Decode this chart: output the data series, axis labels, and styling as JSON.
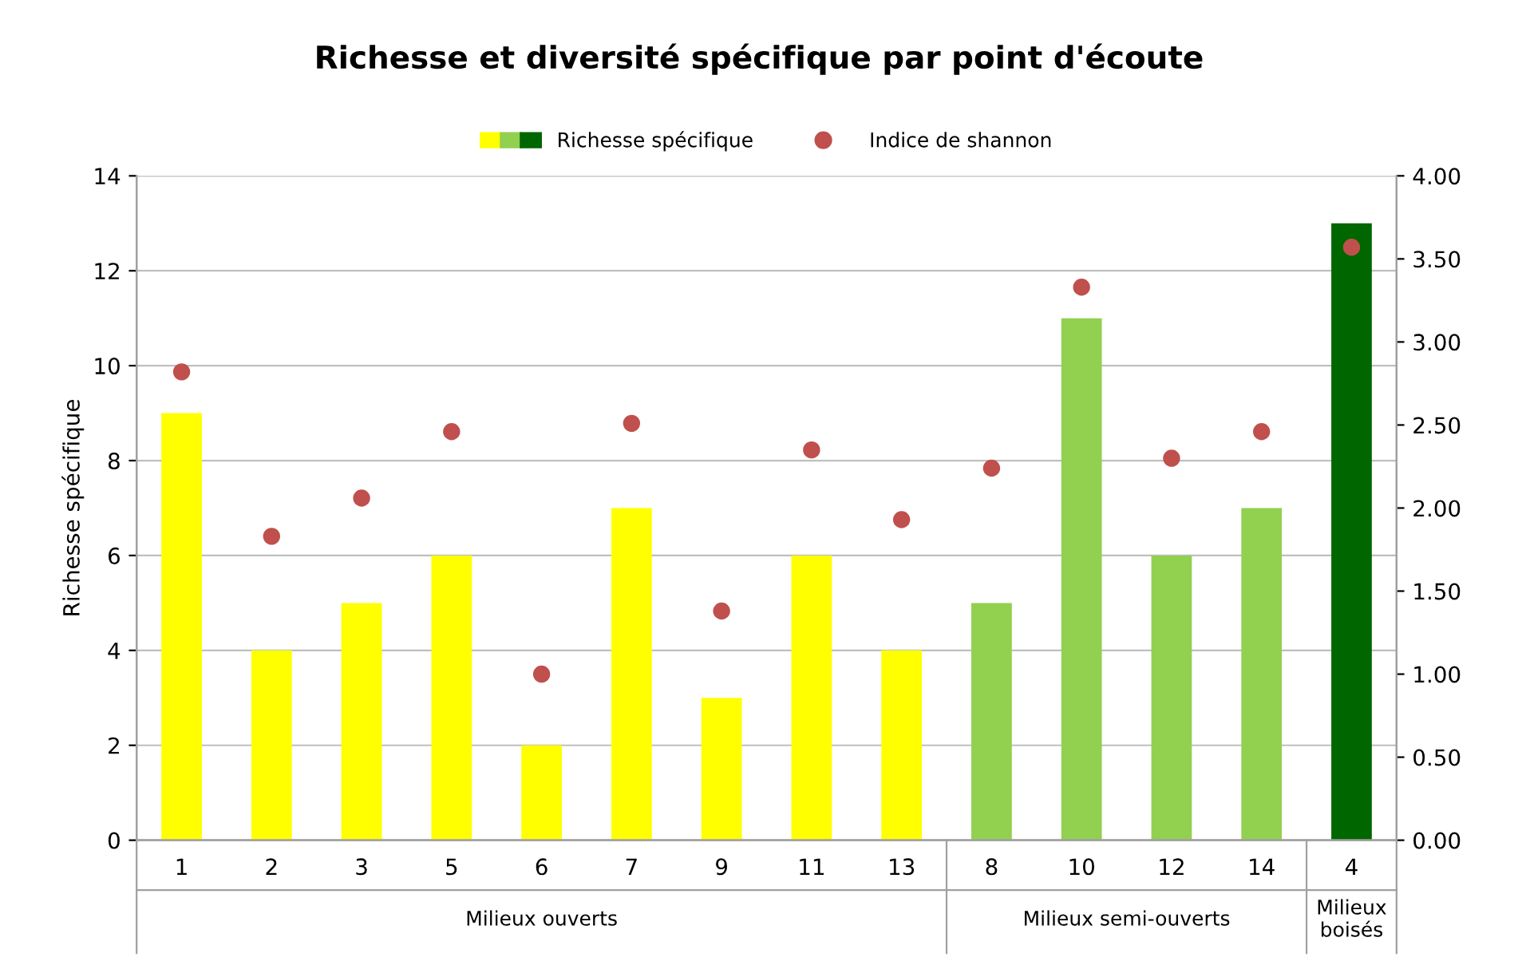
{
  "chart_data": {
    "type": "bar",
    "title": "Richesse et diversité spécifique par point d'écoute",
    "ylabel": "Richesse spécifique",
    "categories": [
      "1",
      "2",
      "3",
      "5",
      "6",
      "7",
      "9",
      "11",
      "13",
      "8",
      "10",
      "12",
      "14",
      "4"
    ],
    "series": [
      {
        "name": "Richesse spécifique",
        "colors": [
          "#ffff00",
          "#ffff00",
          "#ffff00",
          "#ffff00",
          "#ffff00",
          "#ffff00",
          "#ffff00",
          "#ffff00",
          "#ffff00",
          "#92d050",
          "#92d050",
          "#92d050",
          "#92d050",
          "#006600"
        ],
        "values": [
          9,
          4,
          5,
          6,
          2,
          7,
          3,
          6,
          4,
          5,
          11,
          6,
          7,
          13
        ]
      },
      {
        "name": "Indice de shannon",
        "type": "scatter",
        "axis": "y2",
        "color": "#c0504d",
        "values": [
          2.82,
          1.83,
          2.06,
          2.46,
          1.0,
          2.51,
          1.38,
          2.35,
          1.93,
          2.24,
          3.33,
          2.3,
          2.46,
          3.57
        ]
      }
    ],
    "ylim": [
      0,
      14
    ],
    "yticks": [
      0,
      2,
      4,
      6,
      8,
      10,
      12,
      14
    ],
    "y2lim": [
      0,
      4
    ],
    "y2ticks": [
      {
        "value": 0,
        "label": "0.00"
      },
      {
        "value": 0.5,
        "label": "0.50"
      },
      {
        "value": 1,
        "label": "1.00"
      },
      {
        "value": 1.5,
        "label": "1.50"
      },
      {
        "value": 2,
        "label": "2.00"
      },
      {
        "value": 2.5,
        "label": "2.50"
      },
      {
        "value": 3,
        "label": "3.00"
      },
      {
        "value": 3.5,
        "label": "3.50"
      },
      {
        "value": 4,
        "label": "4.00"
      }
    ],
    "grid": "y",
    "legend": "top",
    "marker": "circle",
    "annotations": [
      "Milieux ouverts",
      "Milieux semi-ouverts",
      "Milieux\nboisés"
    ]
  }
}
